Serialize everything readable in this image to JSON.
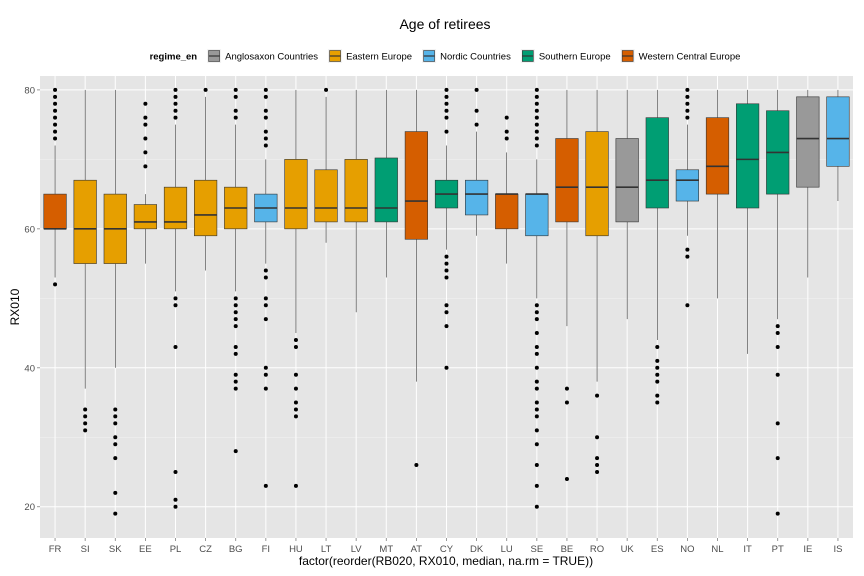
{
  "chart_data": {
    "type": "boxplot",
    "title": "Age of retirees",
    "xlabel": "factor(reorder(RB020, RX010, median, na.rm = TRUE))",
    "ylabel": "RX010",
    "ylim": [
      15.5,
      82
    ],
    "y_ticks": [
      20,
      40,
      60,
      80
    ],
    "grid": true,
    "legend": {
      "title": "regime_en",
      "position": "top",
      "entries": [
        {
          "name": "Anglosaxon Countries",
          "color": "#999999"
        },
        {
          "name": "Eastern Europe",
          "color": "#E69F00"
        },
        {
          "name": "Nordic Countries",
          "color": "#56B4E9"
        },
        {
          "name": "Southern Europe",
          "color": "#009E73"
        },
        {
          "name": "Western Central Europe",
          "color": "#D55E00"
        }
      ]
    },
    "categories": [
      "FR",
      "SI",
      "SK",
      "EE",
      "PL",
      "CZ",
      "BG",
      "FI",
      "HU",
      "LT",
      "LV",
      "MT",
      "AT",
      "CY",
      "DK",
      "LU",
      "SE",
      "BE",
      "RO",
      "UK",
      "ES",
      "NO",
      "NL",
      "IT",
      "PT",
      "IE",
      "IS"
    ],
    "boxes": [
      {
        "cat": "FR",
        "regime": "Western Central Europe",
        "whisker_low": 53,
        "q1": 60,
        "median": 60,
        "q3": 65,
        "whisker_high": 72,
        "outliers": [
          52,
          73,
          74,
          75,
          76,
          77,
          78,
          79,
          80
        ]
      },
      {
        "cat": "SI",
        "regime": "Eastern Europe",
        "whisker_low": 37,
        "q1": 55,
        "median": 60,
        "q3": 67,
        "whisker_high": 80,
        "outliers": [
          31,
          32,
          33,
          34
        ]
      },
      {
        "cat": "SK",
        "regime": "Eastern Europe",
        "whisker_low": 40,
        "q1": 55,
        "median": 60,
        "q3": 65,
        "whisker_high": 80,
        "outliers": [
          19,
          22,
          27,
          29,
          30,
          32,
          33,
          34
        ]
      },
      {
        "cat": "EE",
        "regime": "Eastern Europe",
        "whisker_low": 55,
        "q1": 60,
        "median": 61,
        "q3": 63.5,
        "whisker_high": 65,
        "outliers": [
          69,
          71,
          73,
          75,
          76,
          78
        ]
      },
      {
        "cat": "PL",
        "regime": "Eastern Europe",
        "whisker_low": 51,
        "q1": 60,
        "median": 61,
        "q3": 66,
        "whisker_high": 75,
        "outliers": [
          20,
          21,
          25,
          43,
          49,
          50,
          76,
          77,
          78,
          79,
          80
        ]
      },
      {
        "cat": "CZ",
        "regime": "Eastern Europe",
        "whisker_low": 54,
        "q1": 59,
        "median": 62,
        "q3": 67,
        "whisker_high": 79,
        "outliers": [
          80
        ]
      },
      {
        "cat": "BG",
        "regime": "Eastern Europe",
        "whisker_low": 51,
        "q1": 60,
        "median": 63,
        "q3": 66,
        "whisker_high": 75,
        "outliers": [
          28,
          37,
          38,
          39,
          42,
          43,
          46,
          47,
          48,
          49,
          50,
          76,
          77,
          79,
          80
        ]
      },
      {
        "cat": "FI",
        "regime": "Nordic Countries",
        "whisker_low": 55,
        "q1": 61,
        "median": 63,
        "q3": 65,
        "whisker_high": 70,
        "outliers": [
          23,
          37,
          39,
          40,
          47,
          49,
          50,
          53,
          54,
          72,
          73,
          74,
          76,
          77,
          79,
          80
        ]
      },
      {
        "cat": "HU",
        "regime": "Eastern Europe",
        "whisker_low": 45,
        "q1": 60,
        "median": 63,
        "q3": 70,
        "whisker_high": 80,
        "outliers": [
          23,
          33,
          34,
          35,
          37,
          39,
          43,
          44
        ]
      },
      {
        "cat": "LT",
        "regime": "Eastern Europe",
        "whisker_low": 58,
        "q1": 61,
        "median": 63,
        "q3": 68.5,
        "whisker_high": 79,
        "outliers": [
          80
        ]
      },
      {
        "cat": "LV",
        "regime": "Eastern Europe",
        "whisker_low": 48,
        "q1": 61,
        "median": 63,
        "q3": 70,
        "whisker_high": 80,
        "outliers": []
      },
      {
        "cat": "MT",
        "regime": "Southern Europe",
        "whisker_low": 53,
        "q1": 61,
        "median": 63,
        "q3": 70.2,
        "whisker_high": 80,
        "outliers": []
      },
      {
        "cat": "AT",
        "regime": "Western Central Europe",
        "whisker_low": 38,
        "q1": 58.5,
        "median": 64,
        "q3": 74,
        "whisker_high": 80,
        "outliers": [
          26
        ]
      },
      {
        "cat": "CY",
        "regime": "Southern Europe",
        "whisker_low": 57,
        "q1": 63,
        "median": 65,
        "q3": 67,
        "whisker_high": 72,
        "outliers": [
          40,
          46,
          48,
          49,
          53,
          54,
          55,
          56,
          74,
          76,
          77,
          78,
          79,
          80
        ]
      },
      {
        "cat": "DK",
        "regime": "Nordic Countries",
        "whisker_low": 59,
        "q1": 62,
        "median": 65,
        "q3": 67,
        "whisker_high": 74,
        "outliers": [
          75,
          77,
          80
        ]
      },
      {
        "cat": "LU",
        "regime": "Western Central Europe",
        "whisker_low": 55,
        "q1": 60,
        "median": 65,
        "q3": 65,
        "whisker_high": 71,
        "outliers": [
          73,
          74,
          76
        ]
      },
      {
        "cat": "SE",
        "regime": "Nordic Countries",
        "whisker_low": 50,
        "q1": 59,
        "median": 65,
        "q3": 65,
        "whisker_high": 70,
        "outliers": [
          20,
          23,
          26,
          29,
          31,
          33,
          34,
          35,
          37,
          38,
          40,
          42,
          43,
          45,
          47,
          48,
          49,
          72,
          73,
          74,
          75,
          76,
          77,
          78,
          79,
          80
        ]
      },
      {
        "cat": "BE",
        "regime": "Western Central Europe",
        "whisker_low": 46,
        "q1": 61,
        "median": 66,
        "q3": 73,
        "whisker_high": 80,
        "outliers": [
          24,
          35,
          37
        ]
      },
      {
        "cat": "RO",
        "regime": "Eastern Europe",
        "whisker_low": 38,
        "q1": 59,
        "median": 66,
        "q3": 74,
        "whisker_high": 80,
        "outliers": [
          25,
          26,
          27,
          30,
          36
        ]
      },
      {
        "cat": "UK",
        "regime": "Anglosaxon Countries",
        "whisker_low": 47,
        "q1": 61,
        "median": 66,
        "q3": 73,
        "whisker_high": 80,
        "outliers": []
      },
      {
        "cat": "ES",
        "regime": "Southern Europe",
        "whisker_low": 44,
        "q1": 63,
        "median": 67,
        "q3": 76,
        "whisker_high": 80,
        "outliers": [
          35,
          36,
          38,
          39,
          40,
          41,
          43
        ]
      },
      {
        "cat": "NO",
        "regime": "Nordic Countries",
        "whisker_low": 59,
        "q1": 64,
        "median": 67,
        "q3": 68.5,
        "whisker_high": 75,
        "outliers": [
          49,
          56,
          57,
          76,
          77,
          78,
          79,
          80
        ]
      },
      {
        "cat": "NL",
        "regime": "Western Central Europe",
        "whisker_low": 50,
        "q1": 65,
        "median": 69,
        "q3": 76,
        "whisker_high": 80,
        "outliers": []
      },
      {
        "cat": "IT",
        "regime": "Southern Europe",
        "whisker_low": 42,
        "q1": 63,
        "median": 70,
        "q3": 78,
        "whisker_high": 80,
        "outliers": []
      },
      {
        "cat": "PT",
        "regime": "Southern Europe",
        "whisker_low": 47,
        "q1": 65,
        "median": 71,
        "q3": 77,
        "whisker_high": 80,
        "outliers": [
          19,
          27,
          32,
          39,
          43,
          45,
          46
        ]
      },
      {
        "cat": "IE",
        "regime": "Anglosaxon Countries",
        "whisker_low": 53,
        "q1": 66,
        "median": 73,
        "q3": 79,
        "whisker_high": 80,
        "outliers": []
      },
      {
        "cat": "IS",
        "regime": "Nordic Countries",
        "whisker_low": 64,
        "q1": 69,
        "median": 73,
        "q3": 79,
        "whisker_high": 80,
        "outliers": []
      }
    ]
  }
}
